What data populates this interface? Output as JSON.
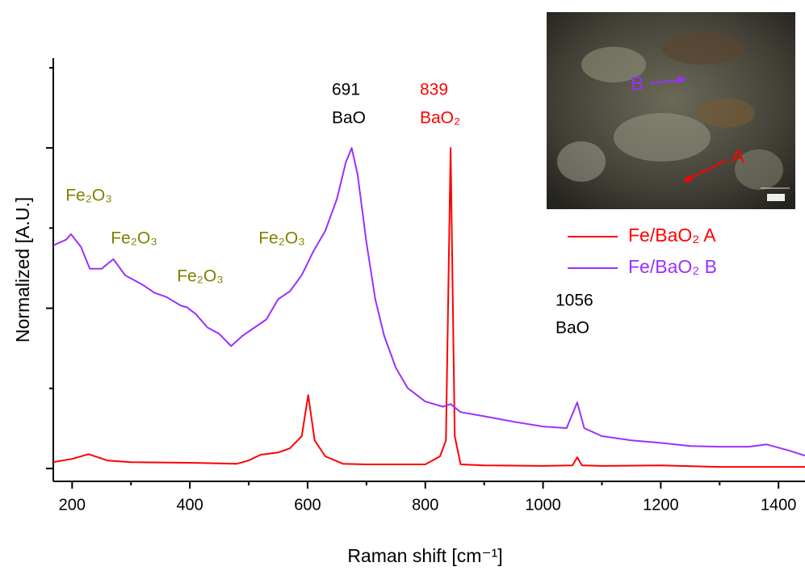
{
  "chart_data": {
    "type": "line",
    "xlabel": "Raman shift [cm⁻¹]",
    "ylabel": "Normalized [A.U.]",
    "xlim": [
      168,
      1445
    ],
    "xticks": [
      200,
      400,
      600,
      800,
      1000,
      1200,
      1400
    ],
    "xticks_minor": [
      300,
      500,
      700,
      900,
      1100,
      1300
    ],
    "ylim": [
      -0.04,
      1.28
    ],
    "yticks": [
      0,
      0.5,
      1
    ],
    "yticks_minor": [
      0.25,
      0.75,
      1.25
    ],
    "legend": "right",
    "series": [
      {
        "name": "Fe/BaO₂ A",
        "color": "#ff0000",
        "x": [
          168,
          200,
          228,
          260,
          300,
          400,
          480,
          500,
          520,
          550,
          570,
          590,
          601,
          612,
          630,
          660,
          700,
          800,
          825,
          835,
          843,
          850,
          860,
          900,
          1000,
          1050,
          1058,
          1066,
          1100,
          1200,
          1300,
          1445
        ],
        "values": [
          0.02,
          0.03,
          0.045,
          0.025,
          0.02,
          0.018,
          0.015,
          0.025,
          0.043,
          0.05,
          0.063,
          0.101,
          0.229,
          0.088,
          0.038,
          0.015,
          0.013,
          0.013,
          0.038,
          0.088,
          1.0,
          0.101,
          0.013,
          0.01,
          0.008,
          0.01,
          0.035,
          0.01,
          0.008,
          0.01,
          0.005,
          0.005
        ]
      },
      {
        "name": "Fe/BaO₂ B",
        "color": "#9b30ff",
        "x": [
          168,
          190,
          198,
          215,
          230,
          250,
          270,
          290,
          320,
          340,
          360,
          385,
          395,
          410,
          430,
          450,
          470,
          490,
          510,
          530,
          550,
          570,
          590,
          610,
          630,
          650,
          665,
          675,
          685,
          700,
          715,
          730,
          750,
          770,
          800,
          830,
          843,
          860,
          900,
          950,
          1000,
          1040,
          1058,
          1070,
          1100,
          1150,
          1200,
          1250,
          1300,
          1350,
          1380,
          1420,
          1445
        ],
        "values": [
          0.696,
          0.714,
          0.731,
          0.691,
          0.623,
          0.623,
          0.653,
          0.603,
          0.573,
          0.548,
          0.535,
          0.508,
          0.503,
          0.482,
          0.44,
          0.42,
          0.382,
          0.415,
          0.44,
          0.465,
          0.528,
          0.553,
          0.603,
          0.678,
          0.741,
          0.842,
          0.955,
          1.0,
          0.917,
          0.704,
          0.528,
          0.415,
          0.314,
          0.251,
          0.209,
          0.193,
          0.201,
          0.176,
          0.163,
          0.146,
          0.131,
          0.126,
          0.206,
          0.126,
          0.101,
          0.088,
          0.08,
          0.07,
          0.068,
          0.068,
          0.075,
          0.055,
          0.04
        ]
      }
    ],
    "annotations": [
      {
        "text": "Fe₂O₃",
        "color": "#808000"
      },
      {
        "text": "Fe₂O₃",
        "color": "#808000"
      },
      {
        "text": "Fe₂O₃",
        "color": "#808000"
      },
      {
        "text": "Fe₂O₃",
        "color": "#808000"
      },
      {
        "text": "691",
        "color": "#000000"
      },
      {
        "text": "BaO",
        "color": "#000000"
      },
      {
        "text": "839",
        "color": "#ff0000"
      },
      {
        "text": "BaO₂",
        "color": "#ff0000"
      },
      {
        "text": "1056",
        "color": "#000000"
      },
      {
        "text": "BaO",
        "color": "#000000"
      }
    ],
    "inset": {
      "labels": [
        {
          "text": "A",
          "color": "#ff0000"
        },
        {
          "text": "B",
          "color": "#9b30ff"
        }
      ]
    }
  }
}
